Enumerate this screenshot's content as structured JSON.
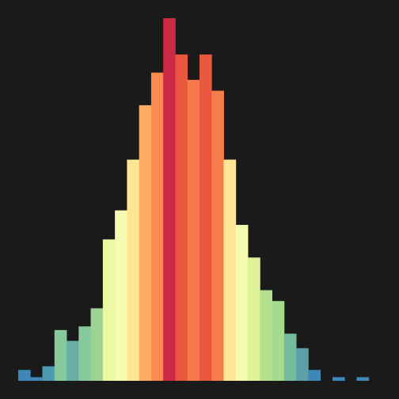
{
  "chart_data": {
    "type": "bar",
    "title": "",
    "xlabel": "",
    "ylabel": "",
    "grid": false,
    "legend": "none",
    "ylim": [
      0,
      100
    ],
    "background_color": "#1a1a1a",
    "colormap": "Spectral_r",
    "bins": [
      {
        "value": 3,
        "color": "#3f87b8"
      },
      {
        "value": 1,
        "color": "#3f87b8"
      },
      {
        "value": 4,
        "color": "#4c9bb0"
      },
      {
        "value": 14,
        "color": "#86ca9b"
      },
      {
        "value": 11,
        "color": "#6aafa3"
      },
      {
        "value": 15,
        "color": "#86ca9b"
      },
      {
        "value": 20,
        "color": "#9ad393"
      },
      {
        "value": 39,
        "color": "#edf8a3"
      },
      {
        "value": 47,
        "color": "#f6fbb1"
      },
      {
        "value": 61,
        "color": "#fee695"
      },
      {
        "value": 76,
        "color": "#fcac63"
      },
      {
        "value": 85,
        "color": "#f98b4e"
      },
      {
        "value": 100,
        "color": "#cb2a44"
      },
      {
        "value": 90,
        "color": "#e8573e"
      },
      {
        "value": 83,
        "color": "#f7784a"
      },
      {
        "value": 90,
        "color": "#e8573e"
      },
      {
        "value": 80,
        "color": "#f77c4b"
      },
      {
        "value": 61,
        "color": "#fee695"
      },
      {
        "value": 43,
        "color": "#f4fbb0"
      },
      {
        "value": 34,
        "color": "#dff298"
      },
      {
        "value": 25,
        "color": "#b4df8d"
      },
      {
        "value": 22,
        "color": "#a4db8f"
      },
      {
        "value": 13,
        "color": "#76bb9d"
      },
      {
        "value": 9,
        "color": "#5d9fa8"
      },
      {
        "value": 3,
        "color": "#3f87b8"
      },
      {
        "value": 0,
        "color": "#3f87b8"
      },
      {
        "value": 1,
        "color": "#3f87b8"
      },
      {
        "value": 0,
        "color": "#3f87b8"
      },
      {
        "value": 1,
        "color": "#3f87b8"
      },
      {
        "value": 0,
        "color": "#3f87b8"
      }
    ]
  }
}
